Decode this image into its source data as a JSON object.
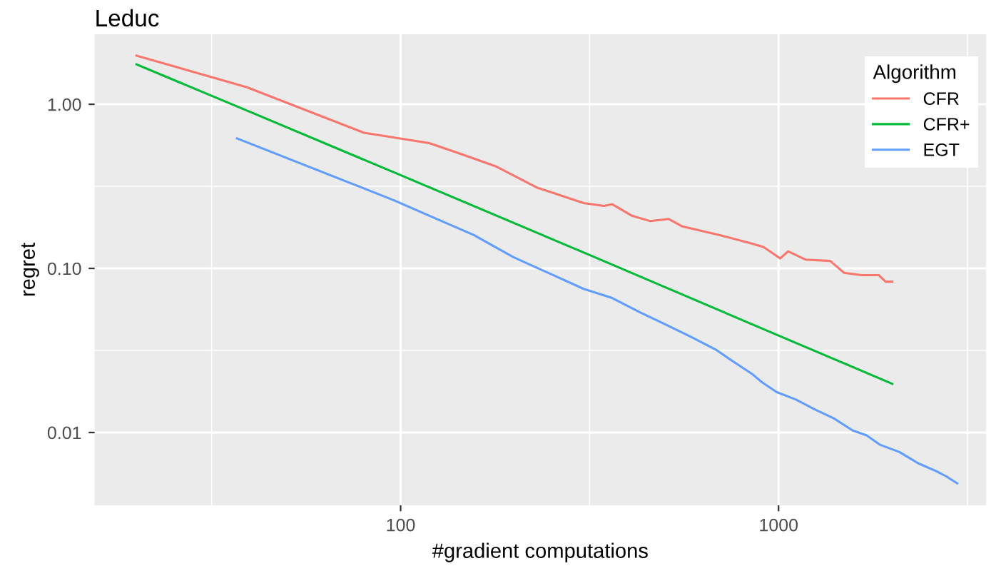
{
  "chart_data": {
    "type": "line",
    "title": "Leduc",
    "xlabel": "#gradient computations",
    "ylabel": "regret",
    "legend_title": "Algorithm",
    "legend": "top right",
    "log": "xy",
    "grid": true,
    "xlim": [
      15.5,
      3540
    ],
    "ylim": [
      0.0036,
      2.67
    ],
    "xticks": [
      {
        "value": 31.62,
        "label": null
      },
      100,
      {
        "value": 316.2,
        "label": null
      },
      1000,
      {
        "value": 3162,
        "label": null
      }
    ],
    "yticks": [
      {
        "value": 1,
        "label": "1.00"
      },
      {
        "value": 0.3162,
        "label": null
      },
      {
        "value": 0.1,
        "label": "0.10"
      },
      {
        "value": 0.03162,
        "label": null
      },
      {
        "value": 0.01,
        "label": "0.01"
      }
    ],
    "series": [
      {
        "name": "CFR",
        "color": "#f8766d",
        "x": [
          20,
          39.2,
          80,
          119,
          140,
          178,
          230,
          305,
          345,
          363,
          408,
          458,
          512,
          557,
          703,
          836,
          912,
          1010,
          1060,
          1180,
          1370,
          1490,
          1660,
          1840,
          1920,
          2000
        ],
        "values": [
          1.98,
          1.27,
          0.67,
          0.58,
          0.51,
          0.42,
          0.31,
          0.25,
          0.24,
          0.246,
          0.21,
          0.194,
          0.2,
          0.18,
          0.159,
          0.143,
          0.135,
          0.115,
          0.127,
          0.113,
          0.111,
          0.094,
          0.091,
          0.091,
          0.083,
          0.083
        ]
      },
      {
        "name": "CFR+",
        "color": "#00ba38",
        "x": [
          20,
          39,
          100,
          300,
          1000,
          2000
        ],
        "values": [
          1.75,
          0.92,
          0.37,
          0.127,
          0.039,
          0.0198
        ]
      },
      {
        "name": "EGT",
        "color": "#619cff",
        "x": [
          36.9,
          96,
          126,
          156,
          178,
          199,
          305,
          363,
          430,
          498,
          590,
          682,
          760,
          850,
          905,
          990,
          1110,
          1250,
          1400,
          1570,
          1710,
          1860,
          2090,
          2340,
          2620,
          2780,
          2970
        ],
        "values": [
          0.62,
          0.26,
          0.198,
          0.16,
          0.135,
          0.117,
          0.075,
          0.066,
          0.054,
          0.046,
          0.038,
          0.032,
          0.027,
          0.0228,
          0.0202,
          0.0176,
          0.0159,
          0.0138,
          0.0122,
          0.0103,
          0.0096,
          0.0084,
          0.0076,
          0.0065,
          0.0058,
          0.0054,
          0.0049
        ]
      }
    ]
  }
}
